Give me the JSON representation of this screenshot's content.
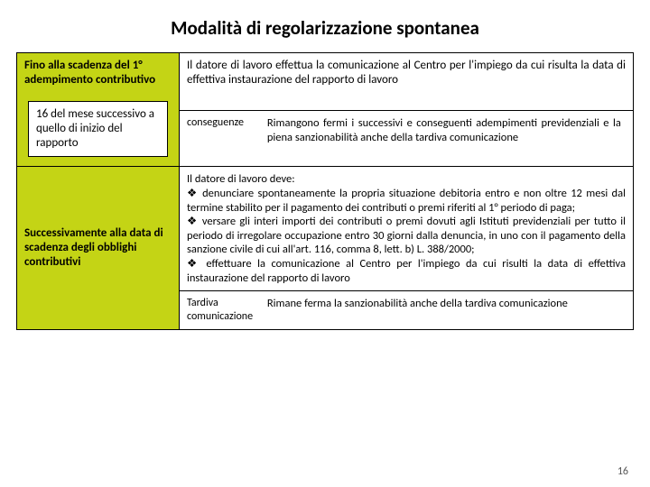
{
  "title": "Modalità di regolarizzazione spontanea",
  "row1": {
    "left_heading": "Fino alla scadenza del 1° adempimento contributivo",
    "left_inner": "16 del mese successivo a quello di inizio del rapporto",
    "right_main": "Il datore di lavoro effettua la comunicazione al Centro per l'impiego da cui risulta la data di effettiva instaurazione del rapporto di lavoro",
    "sub_label": "conseguenze",
    "sub_text": "Rimangono fermi i successivi e conseguenti adempimenti previdenziali e la piena sanzionabilità anche della tardiva comunicazione"
  },
  "row2": {
    "left_heading": "Successivamente alla data di scadenza degli obblighi contributivi",
    "intro": "Il datore di lavoro deve:",
    "b1": "denunciare spontaneamente la propria situazione debitoria entro e  non oltre 12 mesi dal termine stabilito per il pagamento dei contributi o premi riferiti al 1° periodo di paga;",
    "b2": "versare gli interi importi dei contributi o premi dovuti agli Istituti previdenziali per tutto il periodo di irregolare occupazione entro 30 giorni dalla denuncia, in uno con il pagamento della sanzione civile di cui all'art. 116, comma 8, lett. b) L. 388/2000;",
    "b3": "effettuare la comunicazione al Centro per l'impiego da cui risulti la data di effettiva instaurazione del rapporto di lavoro",
    "sub_label": "Tardiva comunicazione",
    "sub_text": "Rimane ferma la sanzionabilità anche della tardiva comunicazione"
  },
  "page_number": "16"
}
